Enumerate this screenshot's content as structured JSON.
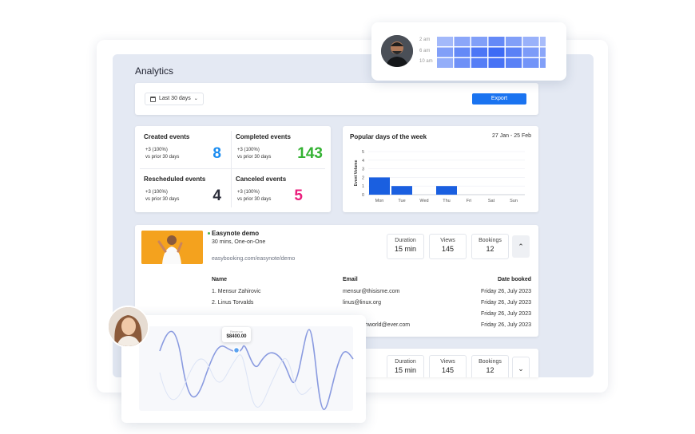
{
  "page": {
    "title": "Analytics"
  },
  "toolbar": {
    "range_label": "Last 30 days",
    "export_label": "Export"
  },
  "stats": [
    {
      "label": "Created events",
      "change": "+3 (100%)",
      "compare": "vs prior 30 days",
      "value": "8",
      "color": "#1a8cf0"
    },
    {
      "label": "Completed events",
      "change": "+3 (100%)",
      "compare": "vs prior 30 days",
      "value": "143",
      "color": "#34b233"
    },
    {
      "label": "Rescheduled events",
      "change": "+3 (100%)",
      "compare": "vs prior 30 days",
      "value": "4",
      "color": "#2b2d3a"
    },
    {
      "label": "Canceled events",
      "change": "+3 (100%)",
      "compare": "vs prior 30 days",
      "value": "5",
      "color": "#ea1e7c"
    }
  ],
  "popular_days": {
    "title": "Popular days of the week",
    "date_range": "27 Jan - 25 Feb"
  },
  "chart_data": {
    "type": "bar",
    "title": "Popular days of the week",
    "categories": [
      "Mon",
      "Tue",
      "Wed",
      "Thu",
      "Fri",
      "Sat",
      "Sun"
    ],
    "values": [
      2,
      1,
      0,
      1,
      0,
      0,
      0
    ],
    "xlabel": "",
    "ylabel": "Event Volume",
    "yticks": [
      "0",
      "1",
      "2",
      "3",
      "4",
      "5"
    ],
    "ylim": [
      0,
      5
    ],
    "grid": true,
    "color": "#1a5fe0"
  },
  "event": {
    "title": "Easynote demo",
    "subtitle": "30 mins, One-on-One",
    "url": "easybooking.com/easynote/demo",
    "metrics": [
      {
        "label": "Duration",
        "value": "15 min"
      },
      {
        "label": "Views",
        "value": "145"
      },
      {
        "label": "Bookings",
        "value": "12"
      }
    ],
    "table_headers": {
      "name": "Name",
      "email": "Email",
      "date": "Date booked"
    },
    "rows": [
      {
        "name": "1. Mensur Zahirovic",
        "email": "mensur@thisisme.com",
        "date": "Friday 26, July 2023"
      },
      {
        "name": "2. Linus Torvalds",
        "email": "linus@linux.org",
        "date": "Friday 26, July 2023"
      },
      {
        "name": "",
        "email": "",
        "date": "Friday 26, July 2023"
      },
      {
        "name": "",
        "email": "thworld@ever.com",
        "date": "Friday 26, July 2023"
      }
    ]
  },
  "event2": {
    "metrics": [
      {
        "label": "Duration",
        "value": "15 min"
      },
      {
        "label": "Views",
        "value": "145"
      },
      {
        "label": "Bookings",
        "value": "12"
      }
    ]
  },
  "heatmap": {
    "rows": [
      "2 am",
      "6 am",
      "10 am"
    ]
  },
  "line_chart": {
    "tooltip_label": "Revenue",
    "tooltip_value": "$8400.00"
  },
  "colors": {
    "accent": "#1a73f0",
    "panel": "#e4e9f3"
  }
}
